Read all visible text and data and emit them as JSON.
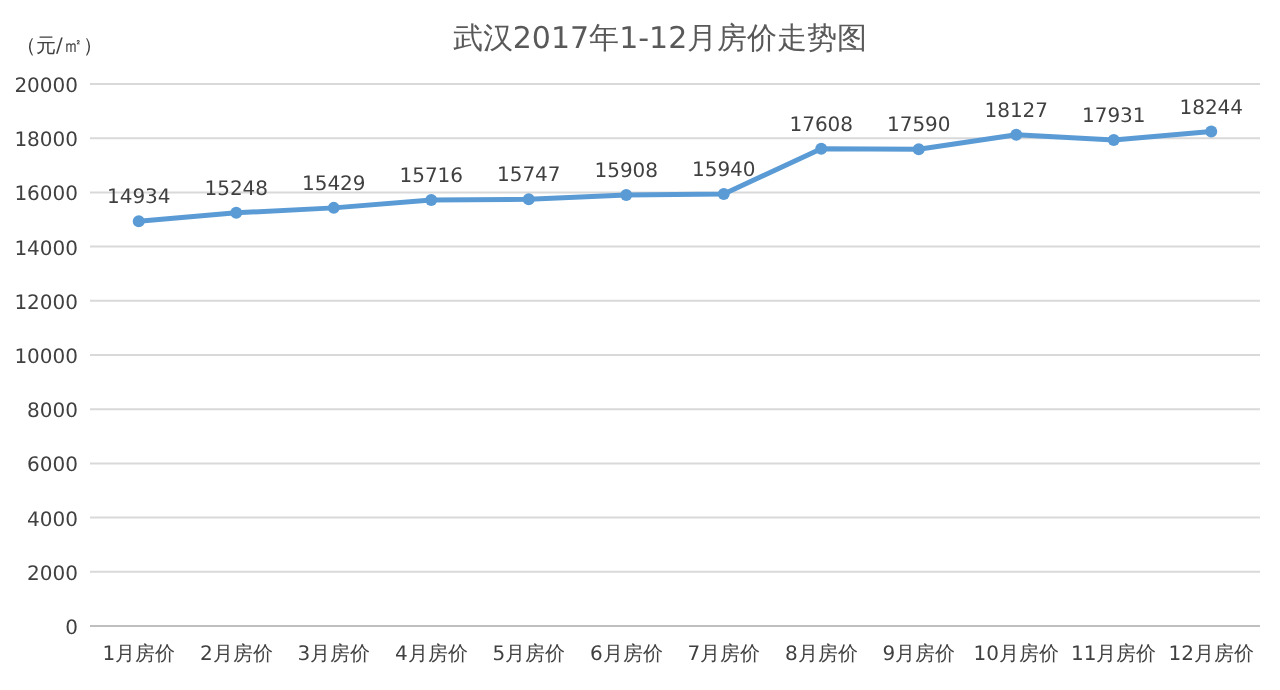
{
  "chart_data": {
    "type": "line",
    "title": "武汉2017年1-12月房价走势图",
    "ylabel": "（元/㎡）",
    "categories": [
      "1月房价",
      "2月房价",
      "3月房价",
      "4月房价",
      "5月房价",
      "6月房价",
      "7月房价",
      "8月房价",
      "9月房价",
      "10月房价",
      "11月房价",
      "12月房价"
    ],
    "series": [
      {
        "color": "#5b9bd5",
        "values": [
          14934,
          15248,
          15429,
          15716,
          15747,
          15908,
          15940,
          17608,
          17590,
          18127,
          17931,
          18244
        ]
      }
    ],
    "ylim": [
      0,
      20000
    ],
    "yticks": [
      0,
      2000,
      4000,
      6000,
      8000,
      10000,
      12000,
      14000,
      16000,
      18000,
      20000
    ],
    "grid": "y",
    "data_labels": true,
    "marker": "circle"
  }
}
